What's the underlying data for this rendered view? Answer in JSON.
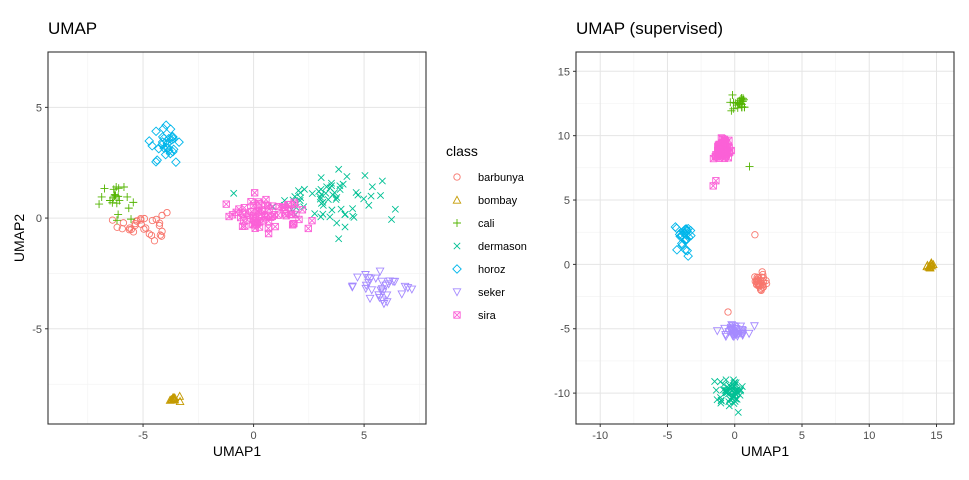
{
  "legend": {
    "title": "class",
    "classes": [
      {
        "name": "barbunya",
        "color": "#F8766D",
        "shape": "circle"
      },
      {
        "name": "bombay",
        "color": "#C49A00",
        "shape": "triangle"
      },
      {
        "name": "cali",
        "color": "#53B400",
        "shape": "plus"
      },
      {
        "name": "dermason",
        "color": "#00C094",
        "shape": "cross"
      },
      {
        "name": "horoz",
        "color": "#00B6EB",
        "shape": "diamond"
      },
      {
        "name": "seker",
        "color": "#A58AFF",
        "shape": "triangle-down"
      },
      {
        "name": "sira",
        "color": "#FB61D7",
        "shape": "square-cross"
      }
    ]
  },
  "chart_data": [
    {
      "type": "scatter",
      "title": "UMAP",
      "xlabel": "UMAP1",
      "ylabel": "UMAP2",
      "xlim": [
        -9.3,
        7.8
      ],
      "ylim": [
        -9.3,
        7.5
      ],
      "xticks": [
        -5,
        0,
        5
      ],
      "yticks": [
        -5,
        0,
        5
      ],
      "xtick_labels": [
        "-5",
        "0",
        "5"
      ],
      "ytick_labels": [
        "-5",
        "0",
        "5"
      ],
      "grid": true,
      "clusters": [
        {
          "class": "barbunya",
          "cx": -5.0,
          "cy": -0.3,
          "sx": 0.55,
          "sy": 0.35,
          "n": 30
        },
        {
          "class": "bombay",
          "cx": -3.6,
          "cy": -8.15,
          "sx": 0.15,
          "sy": 0.08,
          "n": 12
        },
        {
          "class": "cali",
          "cx": -6.2,
          "cy": 0.9,
          "sx": 0.45,
          "sy": 0.35,
          "n": 22
        },
        {
          "class": "dermason",
          "cx": 3.3,
          "cy": 0.9,
          "sx": 1.2,
          "sy": 0.6,
          "n": 65
        },
        {
          "class": "horoz",
          "cx": -4.0,
          "cy": 3.3,
          "sx": 0.35,
          "sy": 0.4,
          "n": 30
        },
        {
          "class": "seker",
          "cx": 5.8,
          "cy": -3.1,
          "sx": 0.65,
          "sy": 0.3,
          "n": 32
        },
        {
          "class": "sira",
          "cx": 0.6,
          "cy": 0.1,
          "sx": 1.0,
          "sy": 0.35,
          "n": 75
        }
      ]
    },
    {
      "type": "scatter",
      "title": "UMAP (supervised)",
      "xlabel": "UMAP1",
      "ylabel": "",
      "xlim": [
        -11.8,
        16.3
      ],
      "ylim": [
        -12.4,
        16.5
      ],
      "xticks": [
        -10,
        -5,
        0,
        5,
        10,
        15
      ],
      "yticks": [
        -10,
        -5,
        0,
        5,
        10,
        15
      ],
      "xtick_labels": [
        "-10",
        "-5",
        "0",
        "5",
        "10",
        "15"
      ],
      "ytick_labels": [
        "-10",
        "-5",
        "0",
        "5",
        "10",
        "15"
      ],
      "grid": true,
      "clusters": [
        {
          "class": "barbunya",
          "cx": 1.9,
          "cy": -1.4,
          "sx": 0.25,
          "sy": 0.35,
          "n": 30
        },
        {
          "class": "bombay",
          "cx": 14.6,
          "cy": -0.05,
          "sx": 0.15,
          "sy": 0.1,
          "n": 12
        },
        {
          "class": "cali",
          "cx": 0.4,
          "cy": 12.5,
          "sx": 0.3,
          "sy": 0.3,
          "n": 25
        },
        {
          "class": "dermason",
          "cx": -0.3,
          "cy": -9.9,
          "sx": 0.45,
          "sy": 0.45,
          "n": 65
        },
        {
          "class": "horoz",
          "cx": -3.7,
          "cy": 2.2,
          "sx": 0.35,
          "sy": 0.6,
          "n": 30
        },
        {
          "class": "seker",
          "cx": 0.1,
          "cy": -5.2,
          "sx": 0.45,
          "sy": 0.25,
          "n": 35
        },
        {
          "class": "sira",
          "cx": -1.0,
          "cy": 8.9,
          "sx": 0.3,
          "sy": 0.45,
          "n": 75
        }
      ],
      "outliers": [
        {
          "class": "cali",
          "x": 1.1,
          "y": 7.6
        },
        {
          "class": "barbunya",
          "x": 1.5,
          "y": 2.3
        },
        {
          "class": "barbunya",
          "x": -0.5,
          "y": -3.7
        },
        {
          "class": "sira",
          "x": -1.6,
          "y": 6.1
        },
        {
          "class": "sira",
          "x": -1.4,
          "y": 6.5
        }
      ]
    }
  ]
}
